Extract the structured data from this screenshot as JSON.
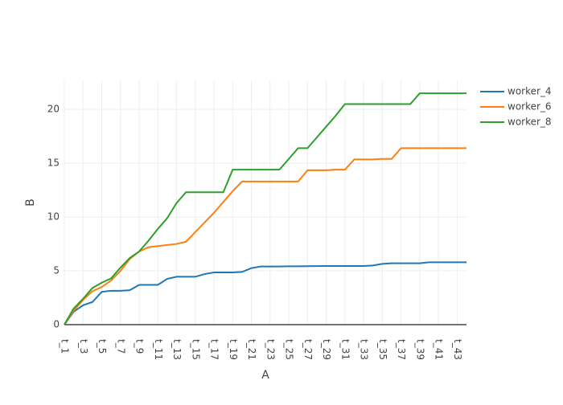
{
  "chart_data": {
    "type": "line",
    "x_label": "A",
    "y_label": "B",
    "categories": [
      "t_1",
      null,
      "t_3",
      null,
      "t_5",
      null,
      "t_7",
      null,
      "t_9",
      null,
      "t_11",
      null,
      "t_13",
      null,
      "t_15",
      null,
      "t_17",
      null,
      "t_19",
      null,
      "t_21",
      null,
      "t_23",
      null,
      "t_25",
      null,
      "t_27",
      null,
      "t_29",
      null,
      "t_31",
      null,
      "t_33",
      null,
      "t_35",
      null,
      "t_37",
      null,
      "t_39",
      null,
      "t_41",
      null,
      "t_43",
      null
    ],
    "series": [
      {
        "name": "worker_4",
        "color": "#1f77b4",
        "values": [
          0,
          1.2,
          1.8,
          2.1,
          3.05,
          3.15,
          3.15,
          3.2,
          3.7,
          3.7,
          3.7,
          4.25,
          4.45,
          4.45,
          4.45,
          4.7,
          4.85,
          4.85,
          4.85,
          4.9,
          5.25,
          5.4,
          5.4,
          5.4,
          5.42,
          5.42,
          5.43,
          5.44,
          5.45,
          5.45,
          5.45,
          5.45,
          5.45,
          5.5,
          5.65,
          5.7,
          5.7,
          5.7,
          5.7,
          5.8,
          5.8,
          5.8,
          5.8,
          5.8
        ]
      },
      {
        "name": "worker_6",
        "color": "#ff7f0e",
        "values": [
          0,
          1.3,
          2.3,
          3.1,
          3.5,
          4.1,
          5.0,
          6.1,
          6.8,
          7.2,
          7.3,
          7.4,
          7.5,
          7.7,
          8.6,
          9.5,
          10.4,
          11.4,
          12.4,
          13.3,
          13.3,
          13.3,
          13.3,
          13.3,
          13.3,
          13.3,
          14.35,
          14.35,
          14.35,
          14.4,
          14.4,
          15.35,
          15.35,
          15.35,
          15.4,
          15.4,
          16.4,
          16.4,
          16.4,
          16.4,
          16.4,
          16.4,
          16.4,
          16.4
        ]
      },
      {
        "name": "worker_8",
        "color": "#2ca02c",
        "values": [
          0,
          1.5,
          2.4,
          3.4,
          3.9,
          4.3,
          5.3,
          6.2,
          6.8,
          7.8,
          8.9,
          9.9,
          11.3,
          12.3,
          12.3,
          12.3,
          12.3,
          12.3,
          14.4,
          14.4,
          14.4,
          14.4,
          14.4,
          14.4,
          15.4,
          16.4,
          16.4,
          17.4,
          18.4,
          19.4,
          20.5,
          20.5,
          20.5,
          20.5,
          20.5,
          20.5,
          20.5,
          20.5,
          21.5,
          21.5,
          21.5,
          21.5,
          21.5,
          21.5
        ]
      }
    ],
    "ylim": [
      0,
      22.7
    ],
    "yticks": [
      0,
      5,
      10,
      15,
      20
    ],
    "grid": true,
    "legend": "top-right"
  }
}
